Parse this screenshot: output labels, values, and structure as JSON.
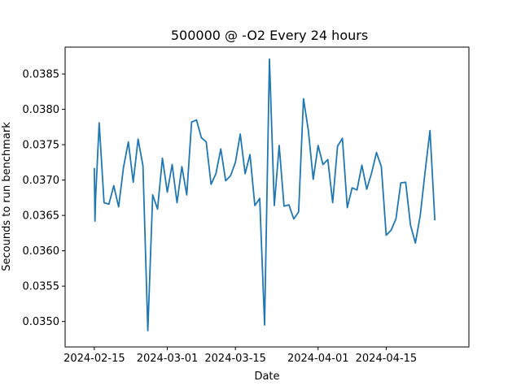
{
  "chart_data": {
    "type": "line",
    "title": "500000 @ -O2 Every 24 hours",
    "xlabel": "Date",
    "ylabel": "Secounds to run benchmark",
    "x_ticks": [
      "2024-02-15",
      "2024-03-01",
      "2024-03-15",
      "2024-04-01",
      "2024-04-15"
    ],
    "y_ticks": [
      "0.0350",
      "0.0355",
      "0.0360",
      "0.0365",
      "0.0370",
      "0.0375",
      "0.0380",
      "0.0385"
    ],
    "xlim": [
      "2024-02-09",
      "2024-05-02"
    ],
    "ylim": [
      0.03464,
      0.03888
    ],
    "grid": false,
    "color": "#1f77b4",
    "series": [
      {
        "x": [
          "2024-02-15",
          "2024-02-15",
          "2024-02-15",
          "2024-02-16",
          "2024-02-17",
          "2024-02-18",
          "2024-02-19",
          "2024-02-20",
          "2024-02-21",
          "2024-02-22",
          "2024-02-23",
          "2024-02-24",
          "2024-02-25",
          "2024-02-26",
          "2024-02-27",
          "2024-02-28",
          "2024-02-29",
          "2024-03-01",
          "2024-03-02",
          "2024-03-03",
          "2024-03-04",
          "2024-03-05",
          "2024-03-06",
          "2024-03-07",
          "2024-03-08",
          "2024-03-09",
          "2024-03-10",
          "2024-03-11",
          "2024-03-12",
          "2024-03-13",
          "2024-03-14",
          "2024-03-15",
          "2024-03-16",
          "2024-03-17",
          "2024-03-18",
          "2024-03-19",
          "2024-03-20",
          "2024-03-21",
          "2024-03-22",
          "2024-03-23",
          "2024-03-24",
          "2024-03-25",
          "2024-03-26",
          "2024-03-27",
          "2024-03-28",
          "2024-03-29",
          "2024-03-30",
          "2024-03-31",
          "2024-04-01",
          "2024-04-02",
          "2024-04-03",
          "2024-04-04",
          "2024-04-05",
          "2024-04-06",
          "2024-04-07",
          "2024-04-08",
          "2024-04-09",
          "2024-04-10",
          "2024-04-11",
          "2024-04-12",
          "2024-04-13",
          "2024-04-14",
          "2024-04-15",
          "2024-04-16",
          "2024-04-17",
          "2024-04-18",
          "2024-04-19",
          "2024-04-20",
          "2024-04-21",
          "2024-04-22",
          "2024-04-23",
          "2024-04-24",
          "2024-04-25"
        ],
        "y": [
          0.03717,
          0.03642,
          0.03675,
          0.03781,
          0.03668,
          0.03666,
          0.03692,
          0.03662,
          0.03718,
          0.03754,
          0.03697,
          0.03758,
          0.0372,
          0.03487,
          0.03679,
          0.03659,
          0.03731,
          0.03683,
          0.03722,
          0.03668,
          0.03719,
          0.03679,
          0.03782,
          0.03785,
          0.0376,
          0.03754,
          0.03694,
          0.03709,
          0.03744,
          0.03699,
          0.03706,
          0.03725,
          0.03765,
          0.03709,
          0.03736,
          0.03664,
          0.03674,
          0.03495,
          0.03871,
          0.03664,
          0.03749,
          0.03663,
          0.03665,
          0.03645,
          0.03655,
          0.03815,
          0.0377,
          0.03701,
          0.03749,
          0.03722,
          0.03729,
          0.03668,
          0.03748,
          0.03759,
          0.03661,
          0.03689,
          0.03686,
          0.03721,
          0.03687,
          0.0371,
          0.03739,
          0.03719,
          0.03622,
          0.03629,
          0.03645,
          0.03696,
          0.03697,
          0.03636,
          0.03611,
          0.0365,
          0.03712,
          0.0377,
          0.03643
        ]
      }
    ]
  }
}
